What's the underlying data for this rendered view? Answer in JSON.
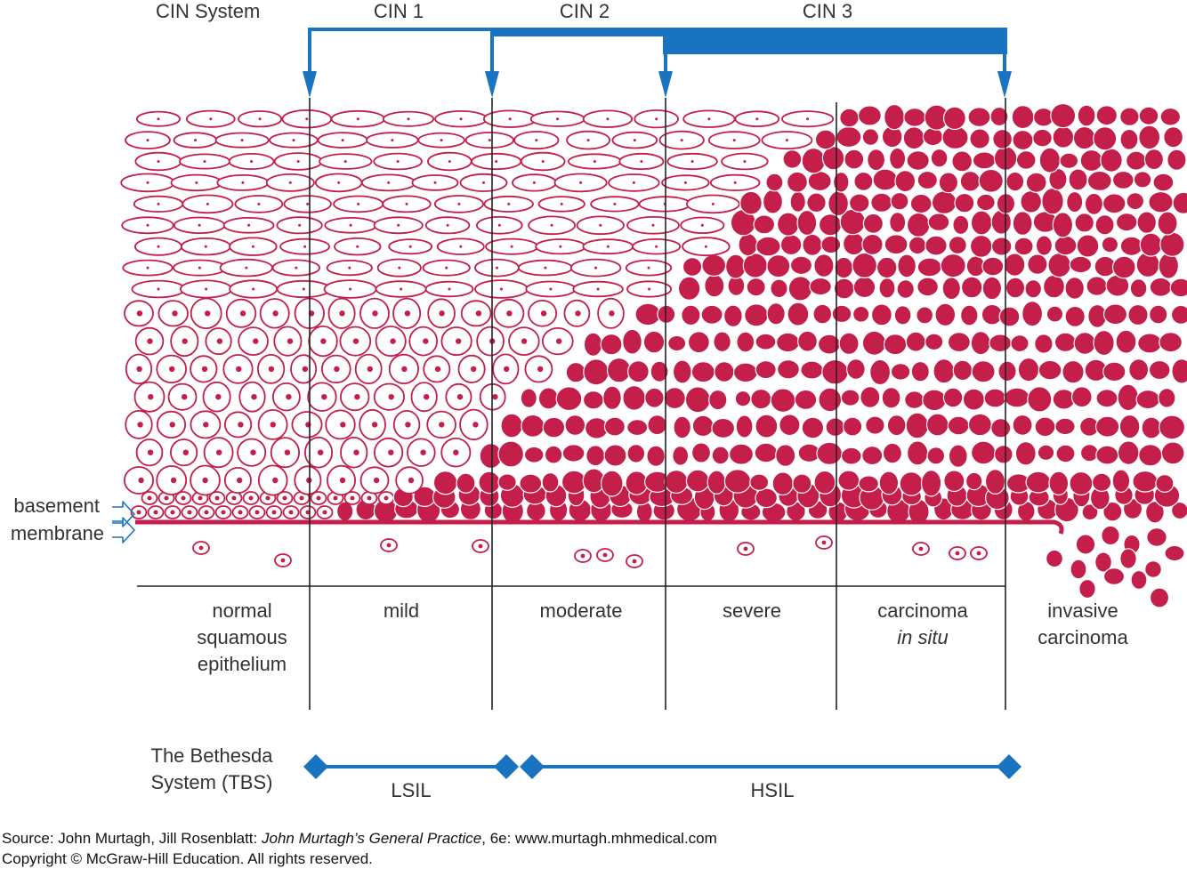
{
  "cin": {
    "system_label": "CIN System",
    "grades": [
      "CIN 1",
      "CIN 2",
      "CIN 3"
    ]
  },
  "side_label": {
    "line1": "basement",
    "line2": "membrane"
  },
  "stages": [
    {
      "lines": [
        "normal",
        "squamous",
        "epithelium"
      ]
    },
    {
      "lines": [
        "mild"
      ]
    },
    {
      "lines": [
        "moderate"
      ]
    },
    {
      "lines": [
        "severe"
      ]
    },
    {
      "lines": [
        "carcinoma",
        "in situ"
      ]
    },
    {
      "lines": [
        "invasive",
        "carcinoma"
      ]
    }
  ],
  "tbs": {
    "label_line1": "The Bethesda",
    "label_line2": "System (TBS)",
    "lsil": "LSIL",
    "hsil": "HSIL"
  },
  "source": {
    "prefix": "Source: John Murtagh, Jill Rosenblatt: ",
    "book": "John Murtagh’s General Practice",
    "suffix": ", 6e: www.murtagh.mhmedical.com",
    "copyright": "Copyright © McGraw-Hill Education. All rights reserved."
  },
  "colors": {
    "cell": "#c41e4a",
    "arrow_blue": "#1a73c0",
    "line": "#222222"
  }
}
